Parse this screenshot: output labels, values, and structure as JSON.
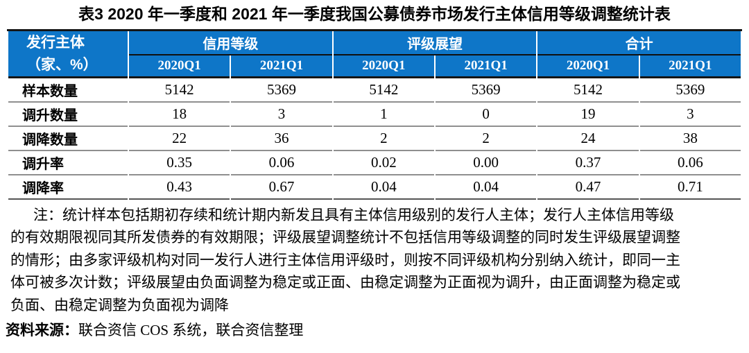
{
  "title": "表3 2020 年一季度和 2021 年一季度我国公募债券市场发行主体信用等级调整统计表",
  "table": {
    "corner_header": {
      "line1": "发行主体",
      "line2": "（家、%）"
    },
    "groups": [
      {
        "label": "信用等级"
      },
      {
        "label": "评级展望"
      },
      {
        "label": "合计"
      }
    ],
    "sub_headers": [
      "2020Q1",
      "2021Q1",
      "2020Q1",
      "2021Q1",
      "2020Q1",
      "2021Q1"
    ],
    "rows": [
      {
        "label": "样本数量",
        "values": [
          "5142",
          "5369",
          "5142",
          "5369",
          "5142",
          "5369"
        ]
      },
      {
        "label": "调升数量",
        "values": [
          "18",
          "3",
          "1",
          "0",
          "19",
          "3"
        ]
      },
      {
        "label": "调降数量",
        "values": [
          "22",
          "36",
          "2",
          "2",
          "24",
          "38"
        ]
      },
      {
        "label": "调升率",
        "values": [
          "0.35",
          "0.06",
          "0.02",
          "0.00",
          "0.37",
          "0.06"
        ]
      },
      {
        "label": "调降率",
        "values": [
          "0.43",
          "0.67",
          "0.04",
          "0.04",
          "0.47",
          "0.71"
        ]
      }
    ]
  },
  "note": "注：统计样本包括期初存续和统计期内新发且具有主体信用级别的发行人主体；发行人主体信用等级\n的有效期限视同其所发债券的有效期限；评级展望调整统计不包括信用等级调整的同时发生评级展望调整\n的情形；由多家评级机构对同一发行人进行主体信用评级时，则按不同评级机构分别纳入统计，即同一主\n体可被多次计数；评级展望由负面调整为稳定或正面、由稳定调整为正面视为调升，由正面调整为稳定或\n负面、由稳定调整为负面视为调降",
  "source": {
    "label": "资料来源：",
    "text": "联合资信 COS 系统，联合资信整理"
  },
  "colors": {
    "header_bg": "#0e76c8",
    "header_text": "#ffffff",
    "heavy_border": "#151515",
    "row_separator": "#8f8f8f",
    "body_text": "#000000"
  }
}
